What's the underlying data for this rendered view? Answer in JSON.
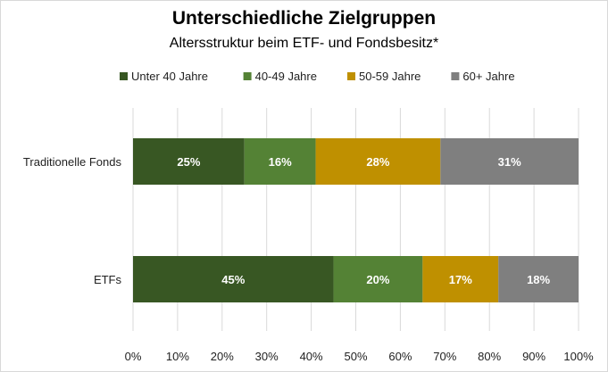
{
  "chart_data": {
    "type": "bar",
    "orientation": "horizontal",
    "stacked": true,
    "title": "Unterschiedliche Zielgruppen",
    "subtitle": "Altersstruktur beim ETF- und Fondsbesitz*",
    "categories": [
      "Traditionelle Fonds",
      "ETFs"
    ],
    "series": [
      {
        "name": "Unter 40 Jahre",
        "color": "#385723",
        "values": [
          25,
          45
        ],
        "labels": [
          "25%",
          "45%"
        ]
      },
      {
        "name": "40-49 Jahre",
        "color": "#548235",
        "values": [
          16,
          20
        ],
        "labels": [
          "16%",
          "20%"
        ]
      },
      {
        "name": "50-59 Jahre",
        "color": "#BF9000",
        "values": [
          28,
          17
        ],
        "labels": [
          "28%",
          "17%"
        ]
      },
      {
        "name": "60+ Jahre",
        "color": "#7F7F7F",
        "values": [
          31,
          18
        ],
        "labels": [
          "31%",
          "18%"
        ]
      }
    ],
    "xlim": [
      0,
      100
    ],
    "xticks": [
      "0%",
      "10%",
      "20%",
      "30%",
      "40%",
      "50%",
      "60%",
      "70%",
      "80%",
      "90%",
      "100%"
    ],
    "grid": true,
    "legend": "top"
  }
}
